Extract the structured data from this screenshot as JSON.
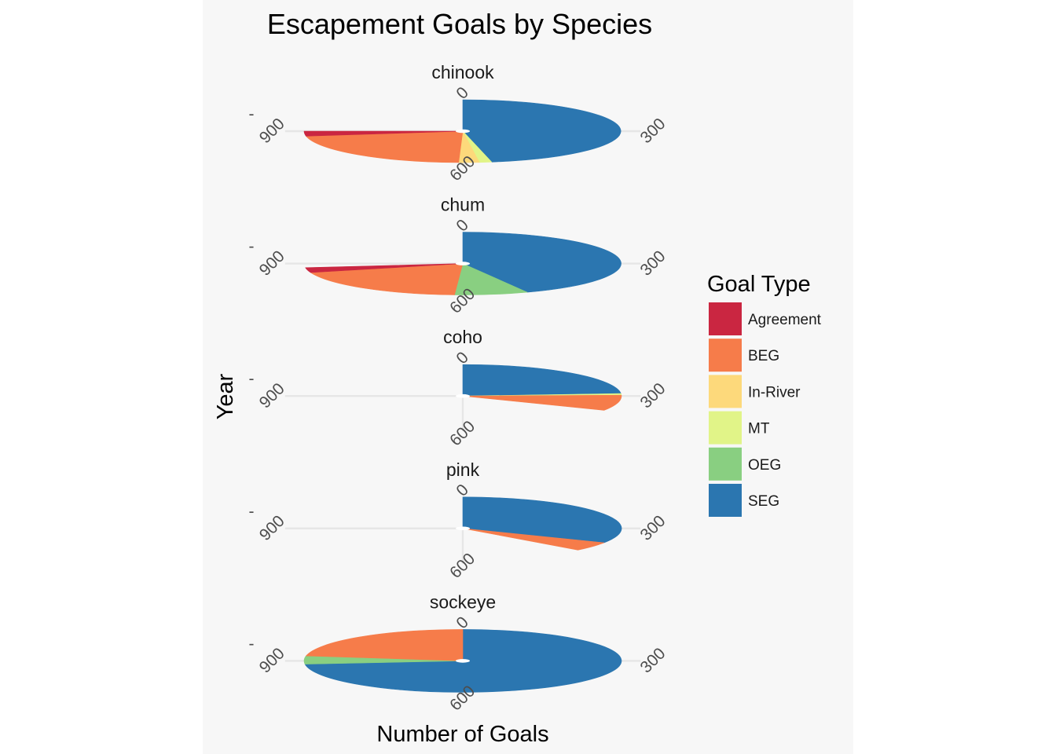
{
  "colors": {
    "Agreement": "#ca2641",
    "BEG": "#f67c4a",
    "In-River": "#fdd97b",
    "MT": "#e1f488",
    "OEG": "#89cf81",
    "SEG": "#2b76b0"
  },
  "chart_data": {
    "type": "pie",
    "title": "Escapement Goals by Species",
    "xlabel": "Number of Goals",
    "ylabel": "Year",
    "y_tick_label": "-",
    "theta_ticks": [
      "0",
      "300",
      "600",
      "900"
    ],
    "theta_max": 1200,
    "legend": {
      "title": "Goal Type",
      "placement": "right",
      "entries": [
        "Agreement",
        "BEG",
        "In-River",
        "MT",
        "OEG",
        "SEG"
      ]
    },
    "facets": [
      {
        "name": "chinook",
        "segments": [
          {
            "type": "SEG",
            "value": 565
          },
          {
            "type": "MT",
            "value": 15
          },
          {
            "type": "In-River",
            "value": 25
          },
          {
            "type": "BEG",
            "value": 265
          },
          {
            "type": "Agreement",
            "value": 30
          }
        ]
      },
      {
        "name": "chum",
        "segments": [
          {
            "type": "SEG",
            "value": 520
          },
          {
            "type": "OEG",
            "value": 90
          },
          {
            "type": "BEG",
            "value": 235
          },
          {
            "type": "Agreement",
            "value": 30
          }
        ]
      },
      {
        "name": "coho",
        "segments": [
          {
            "type": "SEG",
            "value": 285
          },
          {
            "type": "MT",
            "value": 10
          },
          {
            "type": "BEG",
            "value": 95
          }
        ]
      },
      {
        "name": "pink",
        "segments": [
          {
            "type": "SEG",
            "value": 390
          },
          {
            "type": "BEG",
            "value": 55
          }
        ]
      },
      {
        "name": "sockeye",
        "segments": [
          {
            "type": "SEG",
            "value": 880
          },
          {
            "type": "OEG",
            "value": 50
          },
          {
            "type": "BEG",
            "value": 270
          }
        ]
      }
    ]
  }
}
